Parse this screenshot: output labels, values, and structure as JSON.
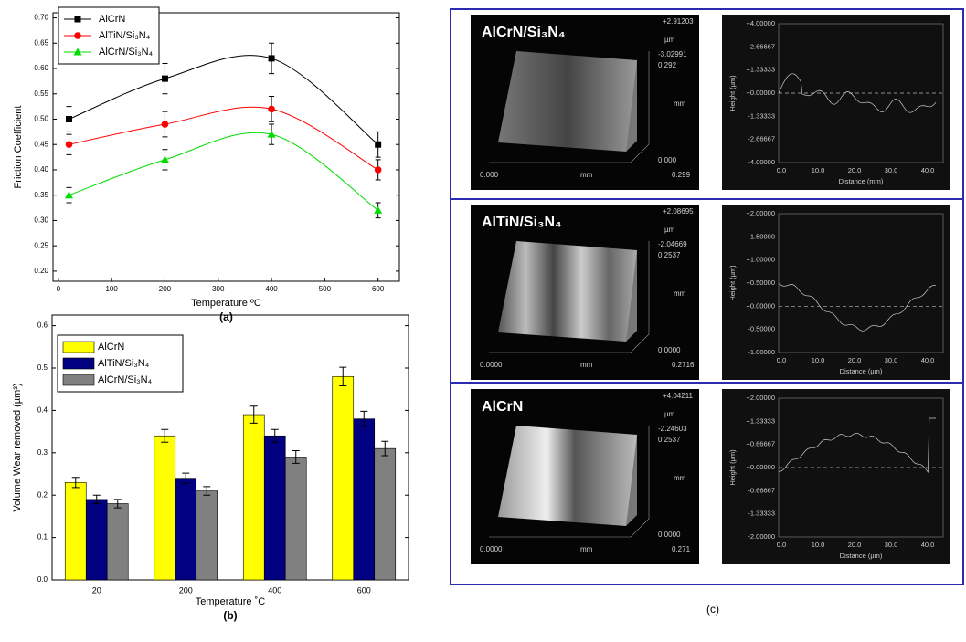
{
  "chart_data": [
    {
      "type": "line",
      "xlabel": "Temperature ºC",
      "ylabel": "Friction Coefficient",
      "caption": "(a)",
      "x": [
        20,
        200,
        400,
        600
      ],
      "series": [
        {
          "name": "AlCrN",
          "color": "#000000",
          "marker": "square",
          "values": [
            0.5,
            0.58,
            0.62,
            0.45
          ],
          "errors": [
            0.025,
            0.03,
            0.03,
            0.025
          ]
        },
        {
          "name": "AlTiN/Si₃N₄",
          "color": "#ff0000",
          "marker": "circle",
          "values": [
            0.45,
            0.49,
            0.52,
            0.4
          ],
          "errors": [
            0.02,
            0.025,
            0.025,
            0.02
          ]
        },
        {
          "name": "AlCrN/Si₃N₄",
          "color": "#00dd00",
          "marker": "triangle",
          "values": [
            0.35,
            0.42,
            0.47,
            0.32
          ],
          "errors": [
            0.015,
            0.02,
            0.02,
            0.015
          ]
        }
      ],
      "xlim": [
        -10,
        640
      ],
      "xticks": [
        0,
        100,
        200,
        300,
        400,
        500,
        600
      ],
      "ylim": [
        0.18,
        0.71
      ],
      "yticks": [
        {
          "value": 0.2,
          "label": "0.20"
        },
        0.25,
        {
          "value": 0.3,
          "label": "0.30"
        },
        0.35,
        {
          "value": 0.4,
          "label": "0.40"
        },
        0.45,
        {
          "value": 0.5,
          "label": "0.50"
        },
        0.55,
        {
          "value": 0.6,
          "label": "0.60"
        },
        0.65,
        {
          "value": 0.7,
          "label": "0.70"
        }
      ],
      "legend": "upper left"
    },
    {
      "type": "bar",
      "xlabel": "Temperature ˚C",
      "ylabel": "Volume Wear removed (µm³)",
      "caption": "(b)",
      "categories": [
        "20",
        "200",
        "400",
        "600"
      ],
      "series": [
        {
          "name": "AlCrN",
          "color": "#ffff00",
          "values": [
            0.23,
            0.34,
            0.39,
            0.48
          ],
          "errors": [
            0.012,
            0.015,
            0.02,
            0.022
          ]
        },
        {
          "name": "AlTiN/Si₃N₄",
          "color": "#000080",
          "values": [
            0.19,
            0.24,
            0.34,
            0.38
          ],
          "errors": [
            0.01,
            0.012,
            0.015,
            0.018
          ]
        },
        {
          "name": "AlCrN/Si₃N₄",
          "color": "#808080",
          "values": [
            0.18,
            0.21,
            0.29,
            0.31
          ],
          "errors": [
            0.01,
            0.01,
            0.015,
            0.017
          ]
        }
      ],
      "ylim": [
        0,
        0.625
      ],
      "yticks": [
        {
          "value": 0,
          "label": "0.0"
        },
        0.1,
        0.2,
        0.3,
        0.4,
        0.5,
        0.6
      ],
      "legend": "upper left"
    }
  ],
  "panel_c": {
    "caption": "(c)",
    "rows": [
      {
        "label": "AlCrN/Si₃N₄",
        "surface": {
          "top": "+2.91203",
          "unit": "µm",
          "low": "-3.02991",
          "depth": "0.292",
          "depth_unit": "mm",
          "z0": "0.000",
          "x0": "0.000",
          "x_unit": "mm",
          "x1": "0.299"
        },
        "profile": {
          "yticks": [
            "+4.00000",
            "+2.66667",
            "+1.33333",
            "+0.00000",
            "-1.33333",
            "-2.66667",
            "-4.00000"
          ],
          "xticks": [
            "0.0",
            "10.0",
            "20.0",
            "30.0",
            "40.0"
          ],
          "xlabel": "Distance (mm)",
          "ylabel": "Height (µm)"
        }
      },
      {
        "label": "AlTiN/Si₃N₄",
        "surface": {
          "top": "+2.08695",
          "unit": "µm",
          "low": "-2.04669",
          "depth": "0.2537",
          "depth_unit": "mm",
          "z0": "0.0000",
          "x0": "0.0000",
          "x_unit": "mm",
          "x1": "0.2716"
        },
        "profile": {
          "yticks": [
            "+2.00000",
            "+1.50000",
            "+1.00000",
            "+0.50000",
            "+0.00000",
            "-0.50000",
            "-1.00000"
          ],
          "xticks": [
            "0.0",
            "10.0",
            "20.0",
            "30.0",
            "40.0"
          ],
          "xlabel": "Distance (µm)",
          "ylabel": "Height (µm)"
        }
      },
      {
        "label": "AlCrN",
        "surface": {
          "top": "+4.04211",
          "unit": "µm",
          "low": "-2.24603",
          "depth": "0.2537",
          "depth_unit": "mm",
          "z0": "0.0000",
          "x0": "0.0000",
          "x_unit": "mm",
          "x1": "0.271"
        },
        "profile": {
          "yticks": [
            "+2.00000",
            "+1.33333",
            "+0.66667",
            "+0.00000",
            "-0.66667",
            "-1.33333",
            "-2.00000"
          ],
          "xticks": [
            "0.0",
            "10.0",
            "20.0",
            "30.0",
            "40.0"
          ],
          "xlabel": "Distance (µm)",
          "ylabel": "Height (µm)"
        }
      }
    ]
  }
}
